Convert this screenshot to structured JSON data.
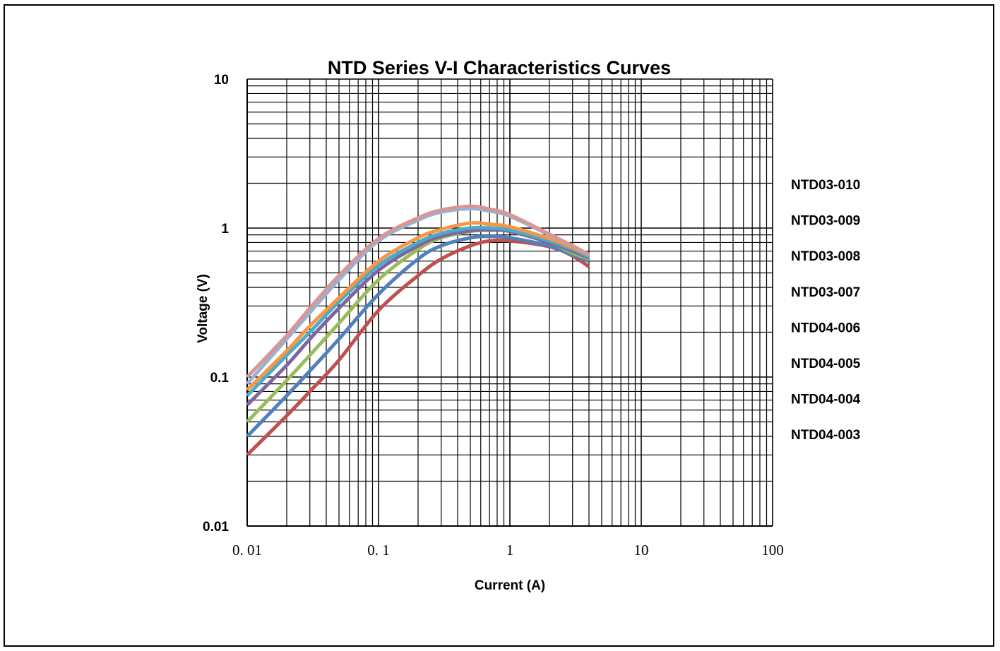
{
  "chart_data": {
    "type": "line",
    "title": "NTD  Series  V-I  Characteristics  Curves",
    "xlabel": "Current (A)",
    "ylabel": "Voltage (V)",
    "xscale": "log",
    "yscale": "log",
    "xlim": [
      0.01,
      100
    ],
    "ylim": [
      0.01,
      10
    ],
    "x_ticks": [
      0.01,
      0.1,
      1,
      10,
      100
    ],
    "x_tick_labels": [
      "0. 01",
      "0. 1",
      "1",
      "10",
      "100"
    ],
    "y_ticks": [
      10,
      1,
      0.1,
      0.01
    ],
    "y_tick_labels": [
      "10",
      "1",
      "0.1",
      "0.01"
    ],
    "grid": true,
    "legend_placement": "right",
    "legend_labels": [
      "NTD03-010",
      "NTD03-009",
      "NTD03-008",
      "NTD03-007",
      "NTD04-006",
      "NTD04-005",
      "NTD04-004",
      "NTD04-003"
    ],
    "series": [
      {
        "color": "#c0504d",
        "x": [
          0.01,
          0.02,
          0.03,
          0.05,
          0.1,
          0.2,
          0.3,
          0.5,
          0.7,
          1,
          2,
          3,
          4
        ],
        "y": [
          0.03,
          0.055,
          0.08,
          0.13,
          0.28,
          0.48,
          0.62,
          0.76,
          0.82,
          0.82,
          0.75,
          0.65,
          0.55
        ]
      },
      {
        "color": "#4f81bd",
        "x": [
          0.01,
          0.02,
          0.03,
          0.05,
          0.1,
          0.2,
          0.3,
          0.5,
          0.7,
          1,
          2,
          3,
          4
        ],
        "y": [
          0.04,
          0.075,
          0.11,
          0.18,
          0.36,
          0.62,
          0.76,
          0.86,
          0.88,
          0.86,
          0.76,
          0.66,
          0.6
        ]
      },
      {
        "color": "#9bbb59",
        "x": [
          0.01,
          0.02,
          0.03,
          0.05,
          0.1,
          0.2,
          0.3,
          0.5,
          0.7,
          1,
          2,
          3,
          4
        ],
        "y": [
          0.05,
          0.095,
          0.14,
          0.23,
          0.45,
          0.72,
          0.86,
          0.95,
          0.97,
          0.95,
          0.8,
          0.68,
          0.62
        ]
      },
      {
        "color": "#8064a2",
        "x": [
          0.01,
          0.02,
          0.03,
          0.05,
          0.1,
          0.2,
          0.3,
          0.5,
          0.7,
          1,
          2,
          3,
          4
        ],
        "y": [
          0.065,
          0.12,
          0.18,
          0.29,
          0.52,
          0.76,
          0.88,
          0.96,
          0.97,
          0.95,
          0.8,
          0.7,
          0.63
        ]
      },
      {
        "color": "#4bacc6",
        "x": [
          0.01,
          0.02,
          0.03,
          0.05,
          0.1,
          0.2,
          0.3,
          0.5,
          0.7,
          1,
          2,
          3,
          4
        ],
        "y": [
          0.075,
          0.14,
          0.2,
          0.32,
          0.56,
          0.8,
          0.92,
          1.0,
          1.0,
          0.97,
          0.82,
          0.72,
          0.64
        ]
      },
      {
        "color": "#f79646",
        "x": [
          0.01,
          0.02,
          0.03,
          0.05,
          0.1,
          0.2,
          0.3,
          0.5,
          0.7,
          1,
          2,
          3,
          4
        ],
        "y": [
          0.082,
          0.15,
          0.22,
          0.34,
          0.6,
          0.86,
          0.98,
          1.08,
          1.06,
          1.02,
          0.85,
          0.74,
          0.66
        ]
      },
      {
        "color": "#95b3d7",
        "x": [
          0.01,
          0.02,
          0.03,
          0.05,
          0.1,
          0.2,
          0.3,
          0.5,
          0.7,
          1,
          2,
          3,
          4
        ],
        "y": [
          0.09,
          0.18,
          0.27,
          0.45,
          0.82,
          1.13,
          1.28,
          1.35,
          1.3,
          1.2,
          0.9,
          0.76,
          0.66
        ]
      },
      {
        "color": "#d99694",
        "x": [
          0.01,
          0.02,
          0.03,
          0.05,
          0.1,
          0.2,
          0.3,
          0.5,
          0.7,
          1,
          2,
          3,
          4
        ],
        "y": [
          0.1,
          0.19,
          0.29,
          0.48,
          0.85,
          1.17,
          1.32,
          1.4,
          1.34,
          1.23,
          0.91,
          0.76,
          0.66
        ]
      }
    ]
  }
}
